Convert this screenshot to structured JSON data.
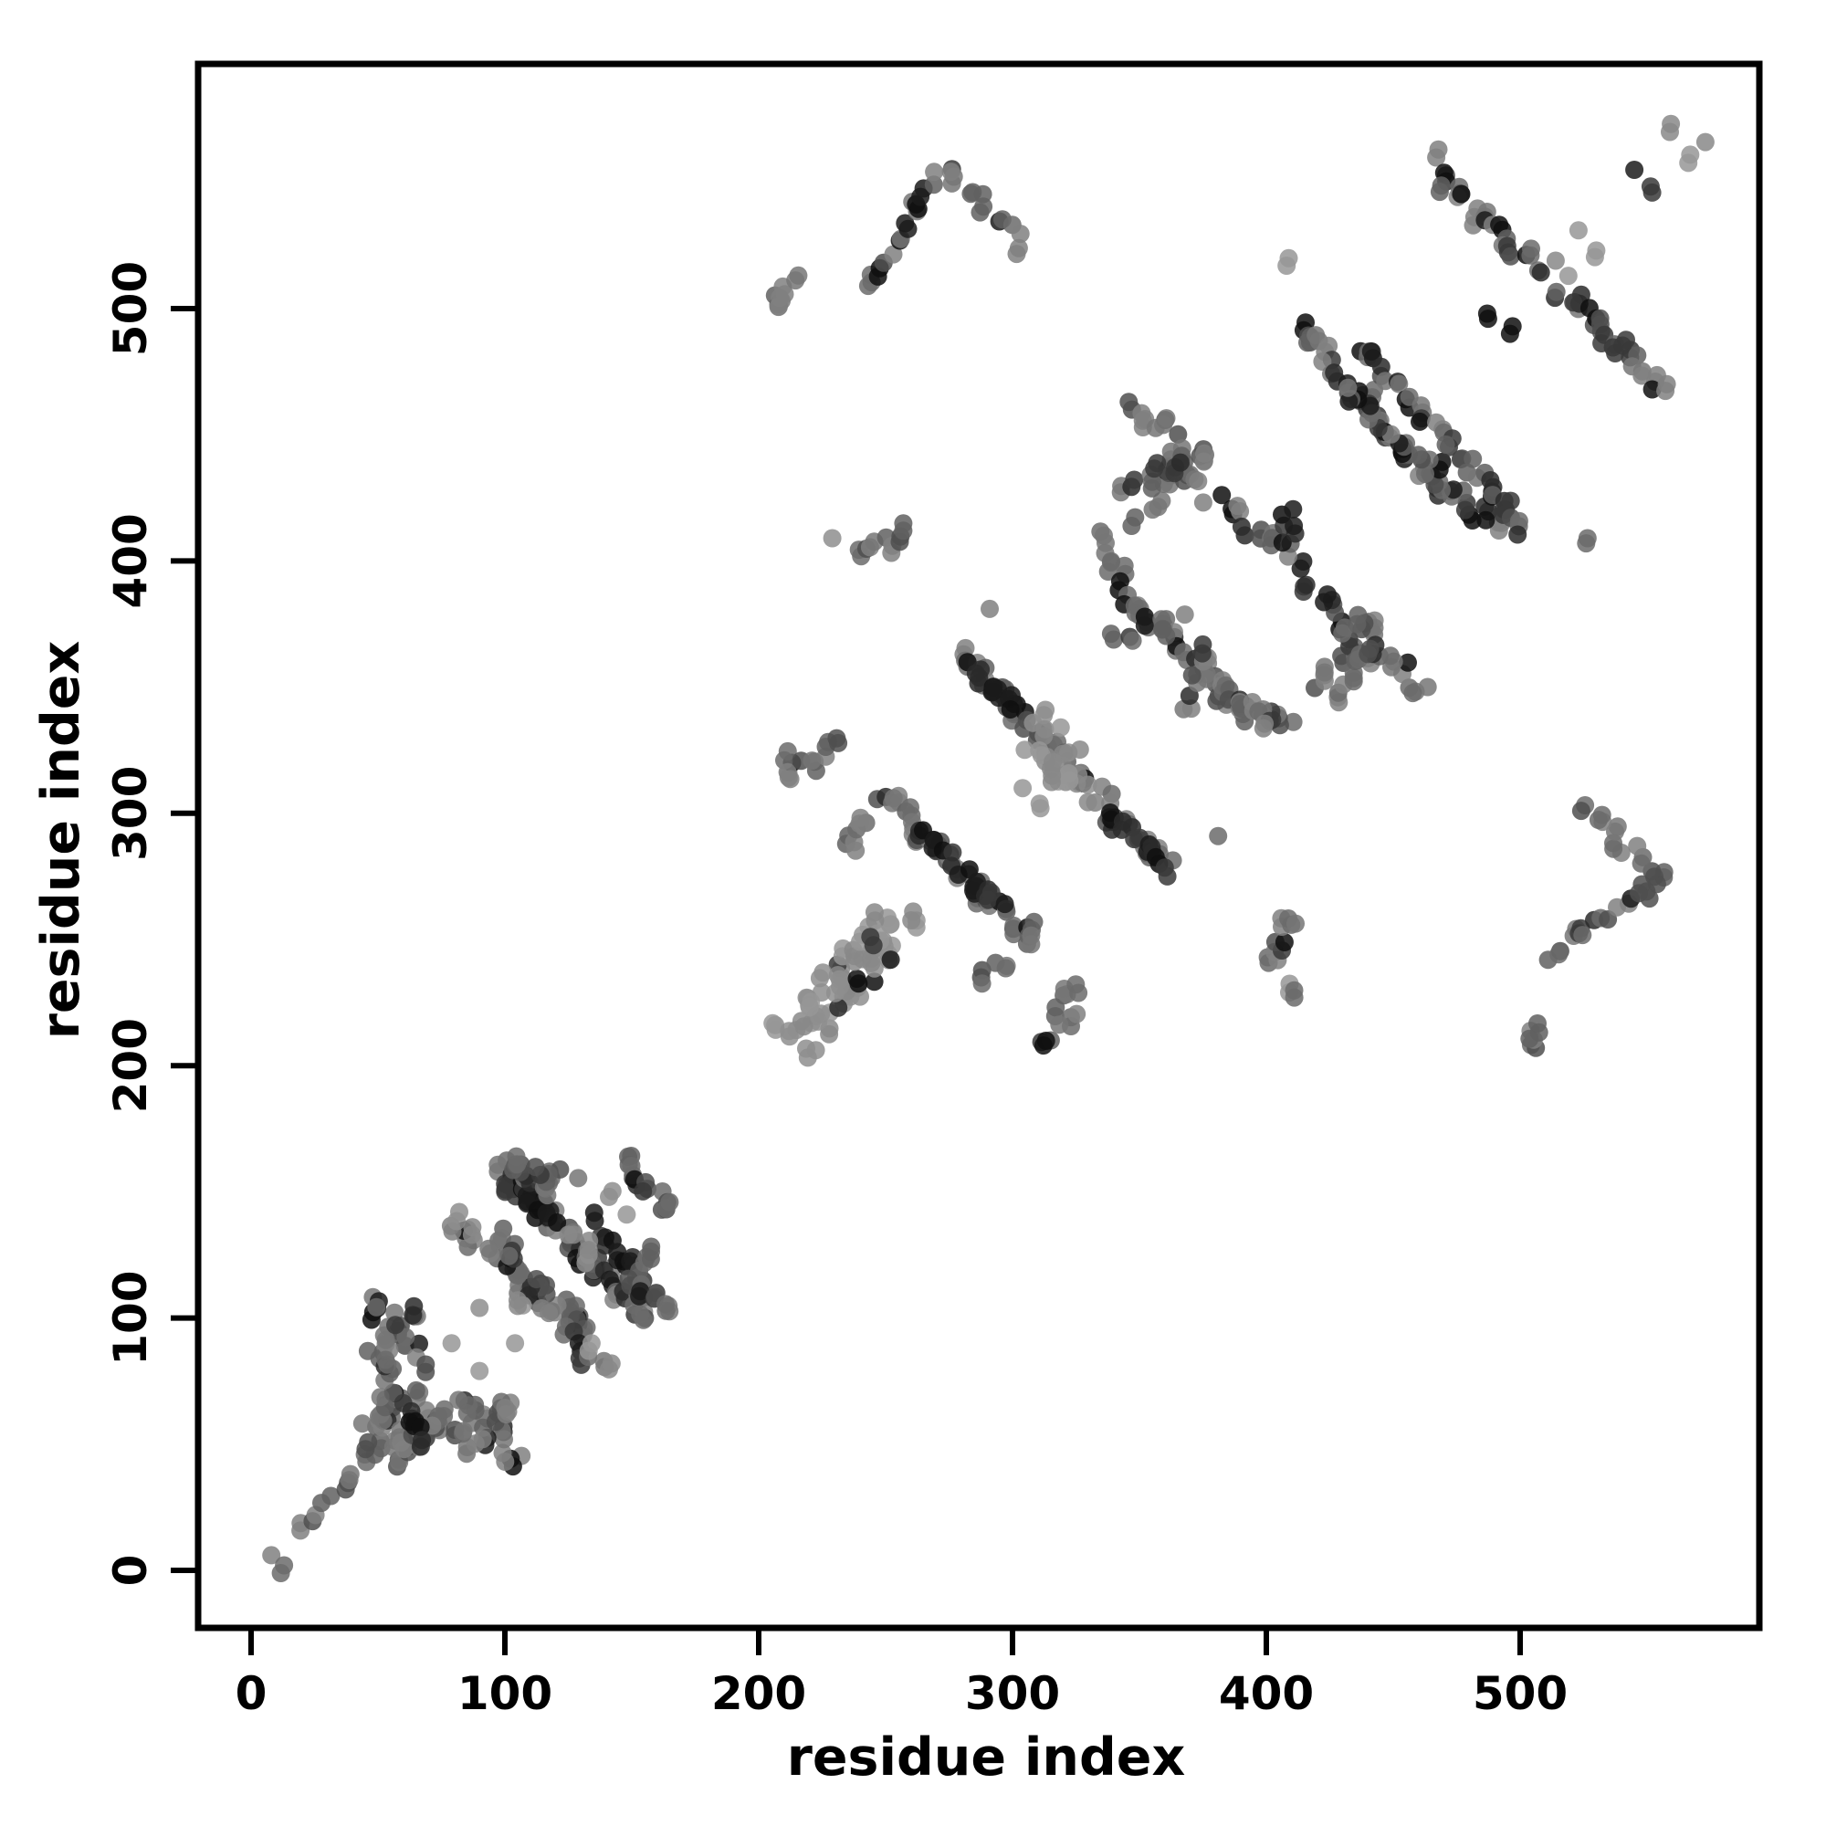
{
  "chart_data": {
    "type": "scatter",
    "title": "",
    "xlabel": "residue index",
    "ylabel": "residue index",
    "xticks": [
      0,
      100,
      200,
      300,
      400,
      500
    ],
    "yticks": [
      0,
      100,
      200,
      300,
      400,
      500
    ],
    "xlim": [
      -21,
      602
    ],
    "ylim": [
      -21,
      602
    ],
    "grid": false,
    "legend": "none",
    "symmetric_about_diagonal": true,
    "marker": {
      "radius_px": 10,
      "opacity": 0.85
    },
    "palette": {
      "light": [
        "#8e8e8e",
        "#979797",
        "#888888"
      ],
      "mid": [
        "#606060",
        "#6b6b6b",
        "#767676",
        "#808080",
        "#4f4f4f"
      ],
      "dark": [
        "#0f0f0f",
        "#1b1b1b",
        "#2a2a2a",
        "#383838"
      ]
    },
    "seed": 42,
    "twin_prob": 0.5,
    "segments": [
      {
        "x1": 19,
        "y1": 16,
        "x2": 48,
        "y2": 45,
        "n": 9,
        "s": "M",
        "df": 0,
        "j": 2.2,
        "m": false
      },
      {
        "x1": 52,
        "y1": 44,
        "x2": 74,
        "y2": 63,
        "n": 15,
        "s": "M",
        "df": 0.12,
        "j": 5,
        "m": true
      },
      {
        "x1": 46,
        "y1": 107,
        "x2": 69,
        "y2": 82,
        "n": 13,
        "s": "M",
        "df": 0.2,
        "j": 4,
        "m": true
      },
      {
        "x1": 48,
        "y1": 84,
        "x2": 68,
        "y2": 103,
        "n": 9,
        "s": "M",
        "df": 0.1,
        "j": 4,
        "m": true
      },
      {
        "x1": 52,
        "y1": 58,
        "x2": 56,
        "y2": 84,
        "n": 9,
        "s": "M",
        "df": 0.15,
        "j": 3,
        "m": true
      },
      {
        "x1": 59,
        "y1": 66,
        "x2": 69,
        "y2": 53,
        "n": 6,
        "s": "D",
        "df": 0,
        "j": 3,
        "m": false
      },
      {
        "x1": 95,
        "y1": 134,
        "x2": 110,
        "y2": 112,
        "n": 11,
        "s": "M",
        "df": 0.15,
        "j": 4,
        "m": true
      },
      {
        "x1": 113,
        "y1": 111,
        "x2": 136,
        "y2": 81,
        "n": 13,
        "s": "M",
        "df": 0.3,
        "j": 4,
        "m": true
      },
      {
        "x1": 98,
        "y1": 159,
        "x2": 158,
        "y2": 99,
        "n": 40,
        "s": "M",
        "df": 0.25,
        "j": 3.5,
        "m": false
      },
      {
        "x1": 101,
        "y1": 155,
        "x2": 121,
        "y2": 140,
        "n": 11,
        "s": "D",
        "df": 0,
        "j": 2.5,
        "m": false
      },
      {
        "x1": 135,
        "y1": 136,
        "x2": 151,
        "y2": 121,
        "n": 9,
        "s": "D",
        "df": 0,
        "j": 2.5,
        "m": false
      },
      {
        "x1": 146,
        "y1": 162,
        "x2": 166,
        "y2": 145,
        "n": 11,
        "s": "M",
        "df": 0.2,
        "j": 4,
        "m": false
      },
      {
        "x1": 153,
        "y1": 107,
        "x2": 157,
        "y2": 127,
        "n": 7,
        "s": "M",
        "df": 0.15,
        "j": 3,
        "m": true
      },
      {
        "x1": 150,
        "y1": 118,
        "x2": 166,
        "y2": 103,
        "n": 7,
        "s": "M",
        "df": 0.2,
        "j": 3,
        "m": true
      },
      {
        "x1": 213,
        "y1": 214,
        "x2": 256,
        "y2": 253,
        "n": 24,
        "s": "L",
        "df": 0.08,
        "j": 9,
        "m": true
      },
      {
        "x1": 209,
        "y1": 314,
        "x2": 230,
        "y2": 326,
        "n": 10,
        "s": "M",
        "df": 0.1,
        "j": 5,
        "m": true
      },
      {
        "x1": 288,
        "y1": 233,
        "x2": 297,
        "y2": 241,
        "n": 5,
        "s": "M",
        "df": 0,
        "j": 4,
        "m": true
      },
      {
        "x1": 249,
        "y1": 308,
        "x2": 310,
        "y2": 247,
        "n": 32,
        "s": "M",
        "df": 0.2,
        "j": 3,
        "m": false
      },
      {
        "x1": 263,
        "y1": 295,
        "x2": 295,
        "y2": 263,
        "n": 14,
        "s": "D",
        "df": 0,
        "j": 2.5,
        "m": false
      },
      {
        "x1": 281,
        "y1": 363,
        "x2": 361,
        "y2": 279,
        "n": 40,
        "s": "M",
        "df": 0.15,
        "j": 3,
        "m": false
      },
      {
        "x1": 283,
        "y1": 359,
        "x2": 301,
        "y2": 343,
        "n": 10,
        "s": "D",
        "df": 0,
        "j": 2.5,
        "m": false
      },
      {
        "x1": 339,
        "y1": 299,
        "x2": 359,
        "y2": 281,
        "n": 10,
        "s": "D",
        "df": 0,
        "j": 2.5,
        "m": false
      },
      {
        "x1": 306,
        "y1": 330,
        "x2": 320,
        "y2": 318,
        "n": 9,
        "s": "L",
        "df": 0,
        "j": 8,
        "m": true
      },
      {
        "x1": 334,
        "y1": 411,
        "x2": 346,
        "y2": 383,
        "n": 9,
        "s": "M",
        "df": 0.1,
        "j": 3,
        "m": true
      },
      {
        "x1": 347,
        "y1": 384,
        "x2": 401,
        "y2": 334,
        "n": 28,
        "s": "M",
        "df": 0.3,
        "j": 3,
        "m": false
      },
      {
        "x1": 349,
        "y1": 419,
        "x2": 377,
        "y2": 444,
        "n": 9,
        "s": "M",
        "df": 0.1,
        "j": 3.5,
        "m": true
      },
      {
        "x1": 360,
        "y1": 440,
        "x2": 404,
        "y2": 407,
        "n": 13,
        "s": "M",
        "df": 0.35,
        "j": 3.5,
        "m": true
      },
      {
        "x1": 404,
        "y1": 409,
        "x2": 413,
        "y2": 418,
        "n": 6,
        "s": "D",
        "df": 0,
        "j": 4,
        "m": false
      },
      {
        "x1": 347,
        "y1": 463,
        "x2": 372,
        "y2": 438,
        "n": 11,
        "s": "M",
        "df": 0.15,
        "j": 3.5,
        "m": true
      },
      {
        "x1": 238,
        "y1": 403,
        "x2": 259,
        "y2": 411,
        "n": 8,
        "s": "M",
        "df": 0.1,
        "j": 3,
        "m": true
      },
      {
        "x1": 208,
        "y1": 503,
        "x2": 215,
        "y2": 509,
        "n": 5,
        "s": "M",
        "df": 0,
        "j": 4,
        "m": true
      },
      {
        "x1": 242,
        "y1": 510,
        "x2": 274,
        "y2": 556,
        "n": 15,
        "s": "M",
        "df": 0.25,
        "j": 3,
        "m": true
      },
      {
        "x1": 276,
        "y1": 555,
        "x2": 303,
        "y2": 524,
        "n": 11,
        "s": "M",
        "df": 0.1,
        "j": 3,
        "m": true
      },
      {
        "x1": 367,
        "y1": 339,
        "x2": 376,
        "y2": 365,
        "n": 7,
        "s": "M",
        "df": 0.15,
        "j": 3,
        "m": true
      },
      {
        "x1": 426,
        "y1": 345,
        "x2": 440,
        "y2": 364,
        "n": 8,
        "s": "M",
        "df": 0.2,
        "j": 3,
        "m": true
      },
      {
        "x1": 413,
        "y1": 491,
        "x2": 467,
        "y2": 431,
        "n": 28,
        "s": "M",
        "df": 0.4,
        "j": 3,
        "m": true
      },
      {
        "x1": 437,
        "y1": 485,
        "x2": 502,
        "y2": 412,
        "n": 34,
        "s": "M",
        "df": 0.45,
        "j": 3,
        "m": false
      },
      {
        "x1": 466,
        "y1": 557,
        "x2": 507,
        "y2": 515,
        "n": 22,
        "s": "M",
        "df": 0.4,
        "j": 3,
        "m": false
      },
      {
        "x1": 515,
        "y1": 507,
        "x2": 556,
        "y2": 468,
        "n": 22,
        "s": "M",
        "df": 0.4,
        "j": 3,
        "m": false
      }
    ],
    "singles": [
      {
        "x": 8,
        "y": 6,
        "s": "M",
        "m": false
      },
      {
        "x": 13,
        "y": 2,
        "s": "M",
        "m": false
      },
      {
        "x": 82,
        "y": 142,
        "s": "L",
        "m": true
      },
      {
        "x": 87,
        "y": 133,
        "s": "L",
        "m": true
      },
      {
        "x": 90,
        "y": 104,
        "s": "L",
        "m": true
      },
      {
        "x": 107,
        "y": 105,
        "s": "L",
        "m": true
      },
      {
        "x": 125,
        "y": 133,
        "s": "L",
        "m": true
      },
      {
        "x": 133,
        "y": 127,
        "s": "L",
        "m": true
      },
      {
        "x": 141,
        "y": 148,
        "s": "L",
        "m": true
      },
      {
        "x": 79,
        "y": 90,
        "s": "L",
        "m": true
      },
      {
        "x": 244,
        "y": 251,
        "s": "D",
        "m": false
      },
      {
        "x": 252,
        "y": 242,
        "s": "D",
        "m": false
      },
      {
        "x": 304,
        "y": 310,
        "s": "L",
        "m": false
      },
      {
        "x": 311,
        "y": 302,
        "s": "L",
        "m": false
      },
      {
        "x": 313,
        "y": 341,
        "s": "L",
        "m": false
      },
      {
        "x": 319,
        "y": 334,
        "s": "L",
        "m": false
      },
      {
        "x": 291,
        "y": 381,
        "s": "M",
        "m": true
      },
      {
        "x": 229,
        "y": 409,
        "s": "L",
        "m": true
      },
      {
        "x": 411,
        "y": 227,
        "s": "M",
        "m": false
      },
      {
        "x": 408,
        "y": 517,
        "s": "L",
        "m": false
      },
      {
        "x": 526,
        "y": 407,
        "s": "M",
        "m": false
      },
      {
        "x": 487,
        "y": 498,
        "s": "D",
        "m": false
      },
      {
        "x": 496,
        "y": 490,
        "s": "D",
        "m": false
      },
      {
        "x": 514,
        "y": 519,
        "s": "L",
        "m": false
      },
      {
        "x": 519,
        "y": 513,
        "s": "L",
        "m": false
      },
      {
        "x": 523,
        "y": 531,
        "s": "L",
        "m": false
      },
      {
        "x": 530,
        "y": 523,
        "s": "L",
        "m": false
      },
      {
        "x": 559,
        "y": 570,
        "s": "L",
        "m": false
      },
      {
        "x": 567,
        "y": 561,
        "s": "L",
        "m": false
      },
      {
        "x": 573,
        "y": 566,
        "s": "L",
        "m": false
      },
      {
        "x": 545,
        "y": 555,
        "s": "D",
        "m": false
      },
      {
        "x": 552,
        "y": 546,
        "s": "D",
        "m": false
      }
    ]
  }
}
